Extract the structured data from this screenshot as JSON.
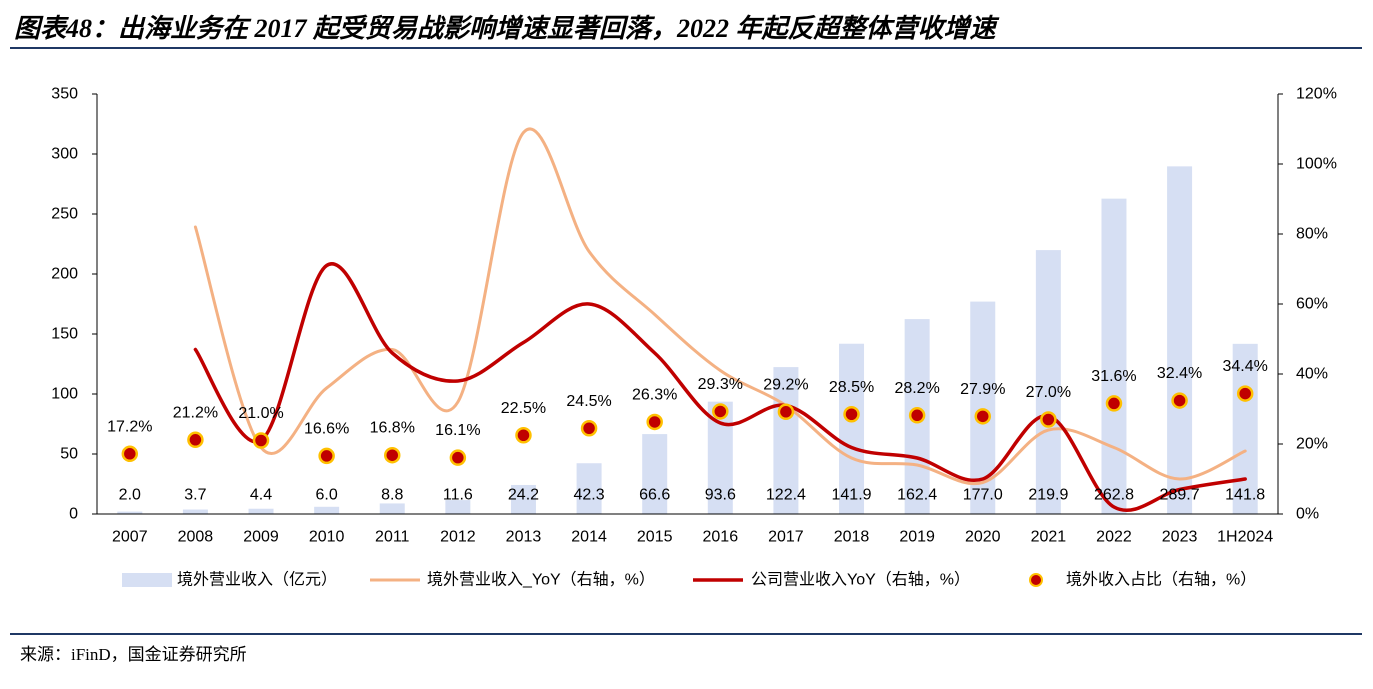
{
  "title": "图表48：出海业务在 2017 起受贸易战影响增速显著回落，2022 年起反超整体营收增速",
  "source": "来源：iFinD，国金证券研究所",
  "colors": {
    "rule": "#1f3864"
  },
  "chart_data": {
    "type": "bar",
    "categories": [
      "2007",
      "2008",
      "2009",
      "2010",
      "2011",
      "2012",
      "2013",
      "2014",
      "2015",
      "2016",
      "2017",
      "2018",
      "2019",
      "2020",
      "2021",
      "2022",
      "2023",
      "1H2024"
    ],
    "left_axis": {
      "min": 0,
      "max": 350,
      "ticks": [
        "0",
        "50",
        "100",
        "150",
        "200",
        "250",
        "300",
        "350"
      ]
    },
    "right_axis": {
      "min": 0,
      "max": 120,
      "ticks": [
        "0%",
        "20%",
        "40%",
        "60%",
        "80%",
        "100%",
        "120%"
      ]
    },
    "series": [
      {
        "name": "境外营业收入（亿元）",
        "type": "bar",
        "axis": "left",
        "color": "#d6dff3",
        "values": [
          2.0,
          3.7,
          4.4,
          6.0,
          8.8,
          11.6,
          24.2,
          42.3,
          66.6,
          93.6,
          122.4,
          141.9,
          162.4,
          177.0,
          219.9,
          262.8,
          289.7,
          141.8
        ]
      },
      {
        "name": "境外营业收入_YoY（右轴，%）",
        "type": "line",
        "axis": "right",
        "color": "#f4b183",
        "values": [
          null,
          82,
          19,
          36,
          47,
          32,
          109,
          75,
          57,
          41,
          31,
          16,
          14,
          9,
          24,
          19,
          10,
          18
        ]
      },
      {
        "name": "公司营业收入YoY（右轴，%）",
        "type": "line",
        "axis": "right",
        "color": "#c00000",
        "values": [
          null,
          47,
          21,
          71,
          46,
          38,
          49,
          60,
          46,
          26,
          31,
          19,
          16,
          10,
          28,
          2,
          7,
          10
        ]
      },
      {
        "name": "境外收入占比（右轴，%）",
        "type": "scatter",
        "axis": "right",
        "color": "#c00000",
        "border_color": "#ffc000",
        "values": [
          17.2,
          21.2,
          21.0,
          16.6,
          16.8,
          16.1,
          22.5,
          24.5,
          26.3,
          29.3,
          29.2,
          28.5,
          28.2,
          27.9,
          27.0,
          31.6,
          32.4,
          34.4
        ]
      }
    ],
    "legend": "bottom",
    "grid": false
  }
}
